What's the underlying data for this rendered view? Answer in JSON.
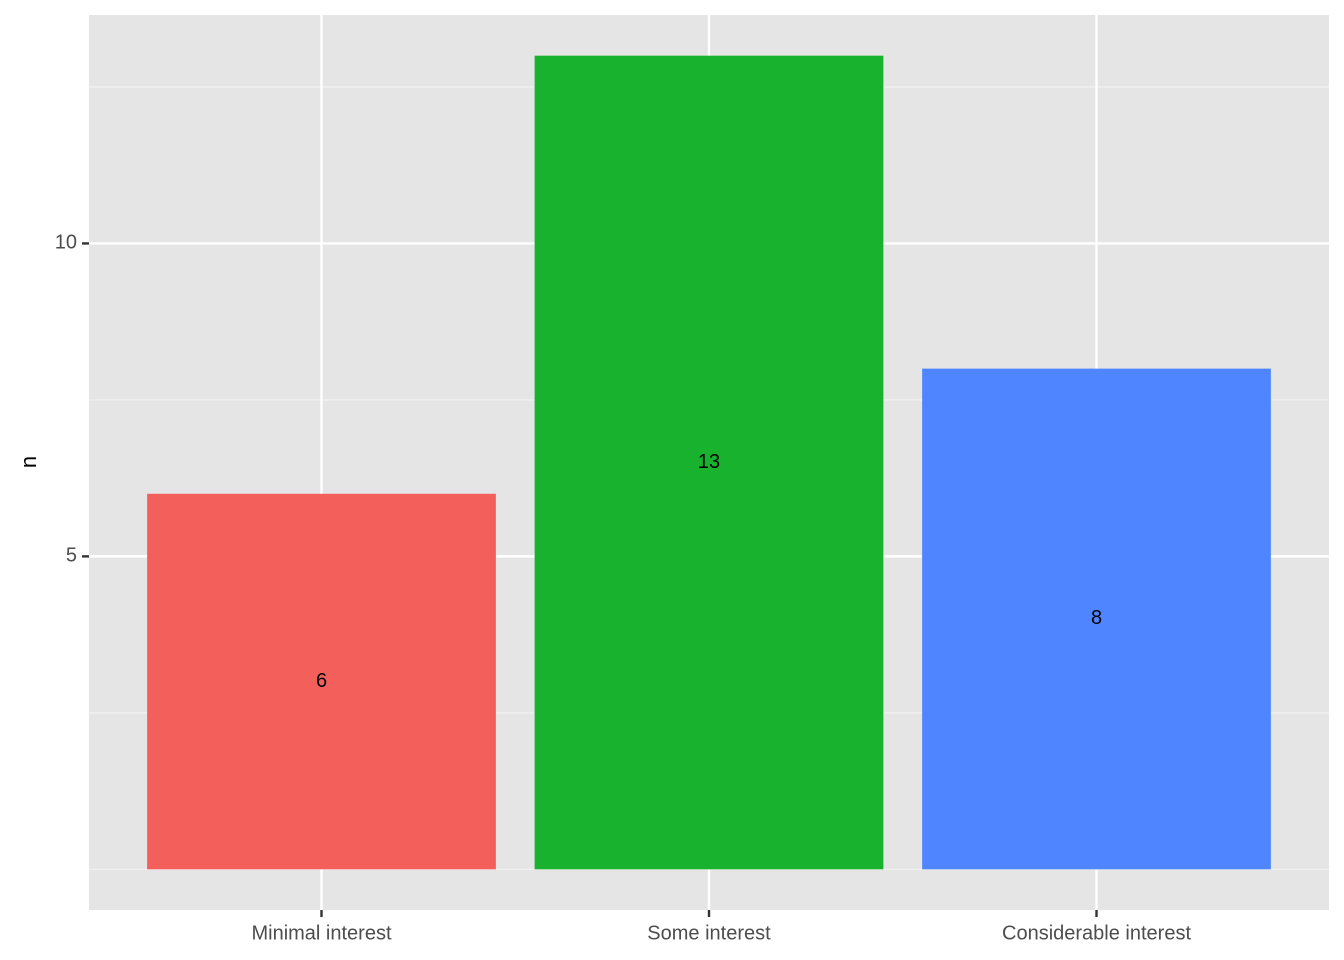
{
  "chart_data": {
    "type": "bar",
    "y_label": "n",
    "categories": [
      "Minimal interest",
      "Some interest",
      "Considerable interest"
    ],
    "values": [
      6,
      13,
      8
    ],
    "colors": [
      "#f35f5b",
      "#19b22f",
      "#4f86ff"
    ],
    "ylim": [
      -0.65,
      13.65
    ],
    "yticks": [
      5,
      10
    ],
    "minor_yticks": [
      0,
      2.5,
      7.5,
      12.5
    ],
    "grid": true
  }
}
